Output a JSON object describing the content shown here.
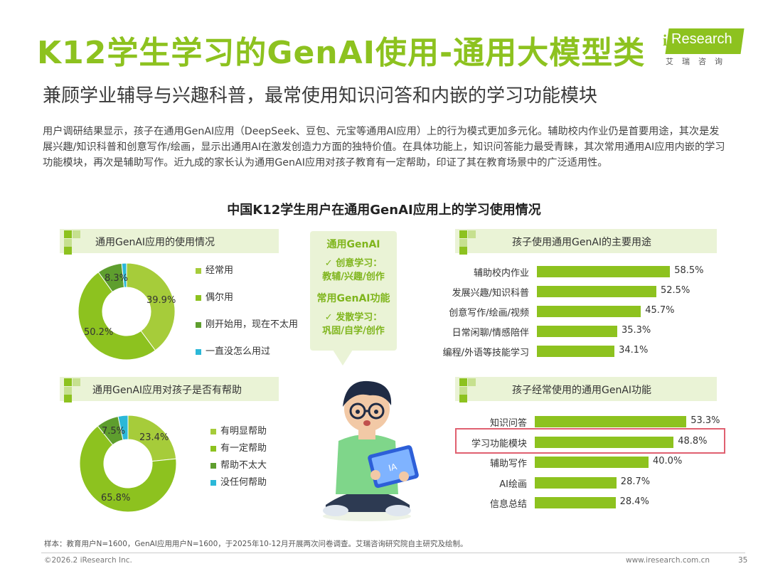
{
  "header": {
    "title": "K12学生学习的GenAI使用-通用大模型类",
    "subtitle": "兼顾学业辅导与兴趣科普，最常使用知识问答和内嵌的学习功能模块",
    "logo_text": "Research",
    "logo_i": "i",
    "logo_cn": "艾瑞咨询"
  },
  "intro": "用户调研结果显示，孩子在通用GenAI应用（DeepSeek、豆包、元宝等通用AI应用）上的行为模式更加多元化。辅助校内作业仍是首要用途，其次是发展兴趣/知识科普和创意写作/绘画，显示出通用AI在激发创造力方面的独特价值。在具体功能上，知识问答能力最受青睐，其次常用通用AI应用内嵌的学习功能模块，再次是辅助写作。近九成的家长认为通用GenAI应用对孩子教育有一定帮助，印证了其在教育场景中的广泛适用性。",
  "main_title": "中国K12学生用户在通用GenAI应用上的学习使用情况",
  "bubble": {
    "h1": "通用GenAI",
    "s1a": "✓ 创意学习：",
    "s1b": "教辅/兴趣/创作",
    "h2": "常用GenAI功能",
    "s2a": "✓ 发散学习：",
    "s2b": "巩固/自学/创作"
  },
  "colors": {
    "c1": "#a6cc3a",
    "c2": "#8dc21f",
    "c3": "#5e9e2e",
    "c4": "#2bb8d8",
    "bar": "#8dc21f"
  },
  "chart_data": [
    {
      "type": "pie",
      "title": "通用GenAI应用的使用情况",
      "categories": [
        "经常用",
        "偶尔用",
        "刚开始用，现在不太用",
        "一直没怎么用过"
      ],
      "values": [
        39.9,
        50.2,
        8.3,
        1.6
      ],
      "labels": [
        "39.9%",
        "50.2%",
        "8.3%",
        ""
      ]
    },
    {
      "type": "pie",
      "title": "通用GenAI应用对孩子是否有帮助",
      "categories": [
        "有明显帮助",
        "有一定帮助",
        "帮助不太大",
        "没任何帮助"
      ],
      "values": [
        23.4,
        65.8,
        7.5,
        3.3
      ],
      "labels": [
        "23.4%",
        "65.8%",
        "7.5%",
        ""
      ]
    },
    {
      "type": "bar",
      "title": "孩子使用通用GenAI的主要用途",
      "categories": [
        "辅助校内作业",
        "发展兴趣/知识科普",
        "创意写作/绘画/视频",
        "日常闲聊/情感陪伴",
        "编程/外语等技能学习"
      ],
      "values": [
        58.5,
        52.5,
        45.7,
        35.3,
        34.1
      ],
      "labels": [
        "58.5%",
        "52.5%",
        "45.7%",
        "35.3%",
        "34.1%"
      ]
    },
    {
      "type": "bar",
      "title": "孩子经常使用的通用GenAI功能",
      "categories": [
        "知识问答",
        "学习功能模块",
        "辅助写作",
        "AI绘画",
        "信息总结"
      ],
      "values": [
        53.3,
        48.8,
        40.0,
        28.7,
        28.4
      ],
      "labels": [
        "53.3%",
        "48.8%",
        "40.0%",
        "28.7%",
        "28.4%"
      ]
    }
  ],
  "footer": {
    "note": "样本：教育用户N=1600，GenAI应用用户N=1600，于2025年10-12月开展两次问卷调查。艾瑞咨询研究院自主研究及绘制。",
    "copyright": "©2026.2 iResearch Inc.",
    "site": "www.iresearch.com.cn",
    "page": "35"
  }
}
